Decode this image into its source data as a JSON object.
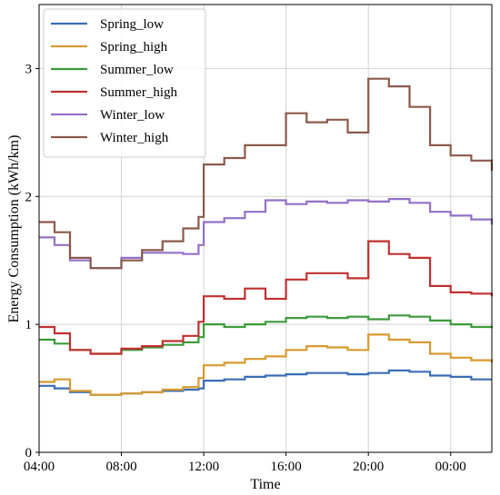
{
  "chart_data": {
    "type": "line",
    "step": true,
    "xlabel": "Time",
    "ylabel": "Energy Consumption (kWh/km)",
    "xlim": [
      4,
      26
    ],
    "ylim": [
      0,
      3.5
    ],
    "xticks": [
      {
        "value": 4,
        "label": "04:00"
      },
      {
        "value": 8,
        "label": "08:00"
      },
      {
        "value": 12,
        "label": "12:00"
      },
      {
        "value": 16,
        "label": "16:00"
      },
      {
        "value": 20,
        "label": "20:00"
      },
      {
        "value": 24,
        "label": "00:00"
      }
    ],
    "yticks": [
      {
        "value": 0,
        "label": "0"
      },
      {
        "value": 1,
        "label": "1"
      },
      {
        "value": 2,
        "label": "2"
      },
      {
        "value": 3,
        "label": "3"
      }
    ],
    "grid": true,
    "legend_position": "top-left",
    "series": [
      {
        "name": "Spring_low",
        "color": "#3a6db5",
        "points": [
          [
            4,
            0.52
          ],
          [
            4.75,
            0.5
          ],
          [
            5.5,
            0.47
          ],
          [
            6.5,
            0.45
          ],
          [
            8,
            0.46
          ],
          [
            9,
            0.47
          ],
          [
            10,
            0.48
          ],
          [
            11,
            0.49
          ],
          [
            11.75,
            0.5
          ],
          [
            12,
            0.56
          ],
          [
            13,
            0.57
          ],
          [
            14,
            0.59
          ],
          [
            15,
            0.6
          ],
          [
            16,
            0.61
          ],
          [
            17,
            0.62
          ],
          [
            18,
            0.62
          ],
          [
            19,
            0.61
          ],
          [
            20,
            0.62
          ],
          [
            21,
            0.64
          ],
          [
            22,
            0.63
          ],
          [
            23,
            0.6
          ],
          [
            24,
            0.59
          ],
          [
            25,
            0.57
          ],
          [
            26,
            0.57
          ]
        ]
      },
      {
        "name": "Spring_high",
        "color": "#d89a2f",
        "points": [
          [
            4,
            0.55
          ],
          [
            4.75,
            0.57
          ],
          [
            5.5,
            0.48
          ],
          [
            6.5,
            0.45
          ],
          [
            8,
            0.46
          ],
          [
            9,
            0.47
          ],
          [
            10,
            0.49
          ],
          [
            11,
            0.51
          ],
          [
            11.75,
            0.58
          ],
          [
            12,
            0.68
          ],
          [
            13,
            0.7
          ],
          [
            14,
            0.73
          ],
          [
            15,
            0.75
          ],
          [
            16,
            0.8
          ],
          [
            17,
            0.83
          ],
          [
            18,
            0.82
          ],
          [
            19,
            0.8
          ],
          [
            20,
            0.92
          ],
          [
            21,
            0.88
          ],
          [
            22,
            0.86
          ],
          [
            23,
            0.77
          ],
          [
            24,
            0.74
          ],
          [
            25,
            0.72
          ],
          [
            26,
            0.7
          ]
        ]
      },
      {
        "name": "Summer_low",
        "color": "#3c9a3a",
        "points": [
          [
            4,
            0.88
          ],
          [
            4.75,
            0.85
          ],
          [
            5.5,
            0.8
          ],
          [
            6.5,
            0.77
          ],
          [
            8,
            0.8
          ],
          [
            9,
            0.82
          ],
          [
            10,
            0.84
          ],
          [
            11,
            0.86
          ],
          [
            11.75,
            0.9
          ],
          [
            12,
            1.0
          ],
          [
            13,
            0.98
          ],
          [
            14,
            1.0
          ],
          [
            15,
            1.02
          ],
          [
            16,
            1.05
          ],
          [
            17,
            1.06
          ],
          [
            18,
            1.05
          ],
          [
            19,
            1.06
          ],
          [
            20,
            1.04
          ],
          [
            21,
            1.07
          ],
          [
            22,
            1.06
          ],
          [
            23,
            1.03
          ],
          [
            24,
            1.0
          ],
          [
            25,
            0.98
          ],
          [
            26,
            0.97
          ]
        ]
      },
      {
        "name": "Summer_high",
        "color": "#c03030",
        "points": [
          [
            4,
            0.98
          ],
          [
            4.75,
            0.93
          ],
          [
            5.5,
            0.8
          ],
          [
            6.5,
            0.77
          ],
          [
            8,
            0.81
          ],
          [
            9,
            0.83
          ],
          [
            10,
            0.87
          ],
          [
            11,
            0.91
          ],
          [
            11.75,
            1.02
          ],
          [
            12,
            1.22
          ],
          [
            13,
            1.2
          ],
          [
            14,
            1.28
          ],
          [
            15,
            1.2
          ],
          [
            16,
            1.35
          ],
          [
            17,
            1.4
          ],
          [
            18,
            1.4
          ],
          [
            19,
            1.36
          ],
          [
            20,
            1.65
          ],
          [
            21,
            1.55
          ],
          [
            22,
            1.52
          ],
          [
            23,
            1.3
          ],
          [
            24,
            1.25
          ],
          [
            25,
            1.24
          ],
          [
            26,
            1.22
          ]
        ]
      },
      {
        "name": "Winter_low",
        "color": "#9370c8",
        "points": [
          [
            4,
            1.68
          ],
          [
            4.75,
            1.62
          ],
          [
            5.5,
            1.5
          ],
          [
            6.5,
            1.44
          ],
          [
            8,
            1.52
          ],
          [
            9,
            1.56
          ],
          [
            10,
            1.56
          ],
          [
            11,
            1.55
          ],
          [
            11.75,
            1.62
          ],
          [
            12,
            1.8
          ],
          [
            13,
            1.83
          ],
          [
            14,
            1.88
          ],
          [
            15,
            1.97
          ],
          [
            16,
            1.94
          ],
          [
            17,
            1.96
          ],
          [
            18,
            1.95
          ],
          [
            19,
            1.97
          ],
          [
            20,
            1.96
          ],
          [
            21,
            1.98
          ],
          [
            22,
            1.95
          ],
          [
            23,
            1.88
          ],
          [
            24,
            1.85
          ],
          [
            25,
            1.82
          ],
          [
            26,
            1.78
          ]
        ]
      },
      {
        "name": "Winter_high",
        "color": "#8b5a4a",
        "points": [
          [
            4,
            1.8
          ],
          [
            4.75,
            1.72
          ],
          [
            5.5,
            1.52
          ],
          [
            6.5,
            1.44
          ],
          [
            8,
            1.5
          ],
          [
            9,
            1.58
          ],
          [
            10,
            1.65
          ],
          [
            11,
            1.75
          ],
          [
            11.75,
            1.84
          ],
          [
            12,
            2.25
          ],
          [
            13,
            2.3
          ],
          [
            14,
            2.4
          ],
          [
            15,
            2.4
          ],
          [
            16,
            2.65
          ],
          [
            17,
            2.58
          ],
          [
            18,
            2.6
          ],
          [
            19,
            2.5
          ],
          [
            20,
            2.92
          ],
          [
            21,
            2.86
          ],
          [
            22,
            2.7
          ],
          [
            23,
            2.4
          ],
          [
            24,
            2.32
          ],
          [
            25,
            2.28
          ],
          [
            26,
            2.2
          ]
        ]
      }
    ]
  }
}
